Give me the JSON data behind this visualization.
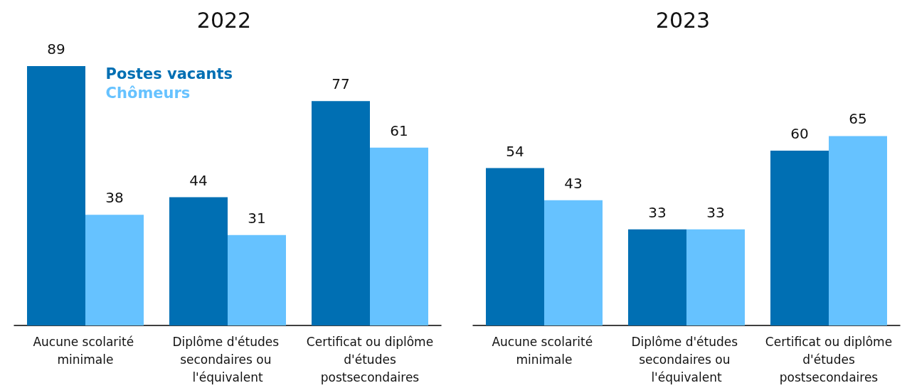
{
  "chart_data": [
    {
      "type": "bar",
      "title": "2022",
      "categories": [
        "Aucune scolarité minimale",
        "Diplôme d'études secondaires ou l'équivalent",
        "Certificat ou diplôme d'études postsecondaires"
      ],
      "series": [
        {
          "name": "Postes vacants",
          "color": "#006fb3",
          "values": [
            89,
            44,
            77
          ]
        },
        {
          "name": "Chômeurs",
          "color": "#66c2ff",
          "values": [
            38,
            31,
            61
          ]
        }
      ],
      "data_labels": true,
      "legend": "top left",
      "grid": false,
      "tick_labels": "x"
    },
    {
      "type": "bar",
      "title": "2023",
      "categories": [
        "Aucune scolarité minimale",
        "Diplôme d'études secondaires ou l'équivalent",
        "Certificat ou diplôme d'études postsecondaires"
      ],
      "series": [
        {
          "color": "#006fb3",
          "values": [
            54,
            33,
            60
          ]
        },
        {
          "color": "#66c2ff",
          "values": [
            43,
            33,
            65
          ]
        }
      ],
      "data_labels": true,
      "grid": false,
      "tick_labels": "x"
    }
  ]
}
